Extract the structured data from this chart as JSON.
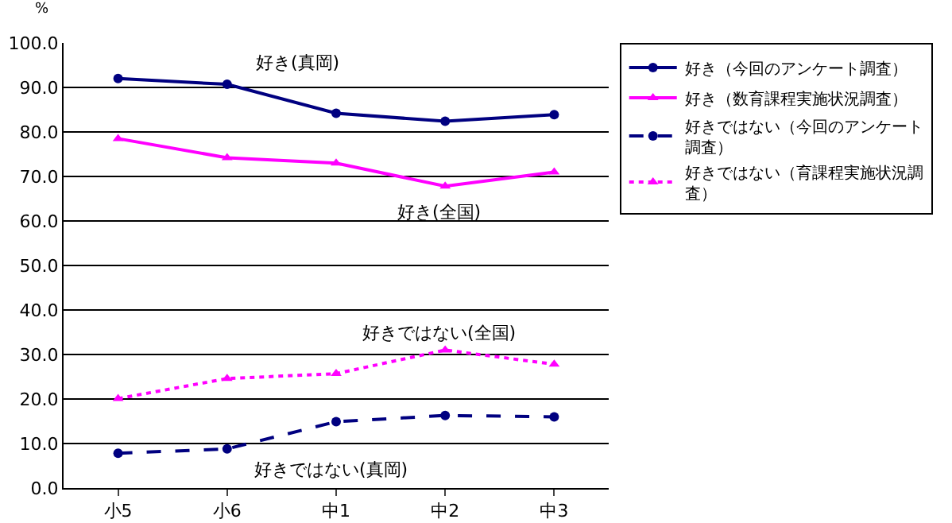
{
  "chart_data": {
    "type": "line",
    "ylabel": "%",
    "categories": [
      "小5",
      "小6",
      "中1",
      "中2",
      "中3"
    ],
    "ylim": [
      0,
      100
    ],
    "yticks": [
      {
        "value": 0,
        "label": "0.0"
      },
      {
        "value": 10,
        "label": "10.0"
      },
      {
        "value": 20,
        "label": "20.0"
      },
      {
        "value": 30,
        "label": "30.0"
      },
      {
        "value": 40,
        "label": "40.0"
      },
      {
        "value": 50,
        "label": "50.0"
      },
      {
        "value": 60,
        "label": "60.0"
      },
      {
        "value": 70,
        "label": "70.0"
      },
      {
        "value": 80,
        "label": "80.0"
      },
      {
        "value": 90,
        "label": "90.0"
      },
      {
        "value": 100,
        "label": "100.0"
      }
    ],
    "grid": "y",
    "legend": "right",
    "series": [
      {
        "name": "好き（今回のアンケート調査）",
        "color": "#000080",
        "marker": "circle",
        "line_style": "solid",
        "values": [
          92.0,
          90.7,
          84.2,
          82.4,
          83.9
        ]
      },
      {
        "name": "好き（数育課程実施状況調査）",
        "color": "#ff00ff",
        "marker": "triangle",
        "line_style": "solid",
        "values": [
          78.5,
          74.2,
          73.0,
          67.8,
          71.0
        ]
      },
      {
        "name": "好きではない（今回のアンケート調査）",
        "color": "#000080",
        "marker": "circle",
        "line_style": "dashed",
        "values": [
          7.8,
          8.8,
          14.9,
          16.3,
          16.0
        ]
      },
      {
        "name": "好きではない（育課程実施状況調査）",
        "color": "#ff00ff",
        "marker": "triangle",
        "line_style": "dotted",
        "values": [
          20.1,
          24.6,
          25.7,
          31.0,
          27.8
        ]
      }
    ],
    "annotations": [
      "好き(真岡)",
      "好き(全国)",
      "好きではない(全国)",
      "好きではない(真岡)"
    ]
  }
}
